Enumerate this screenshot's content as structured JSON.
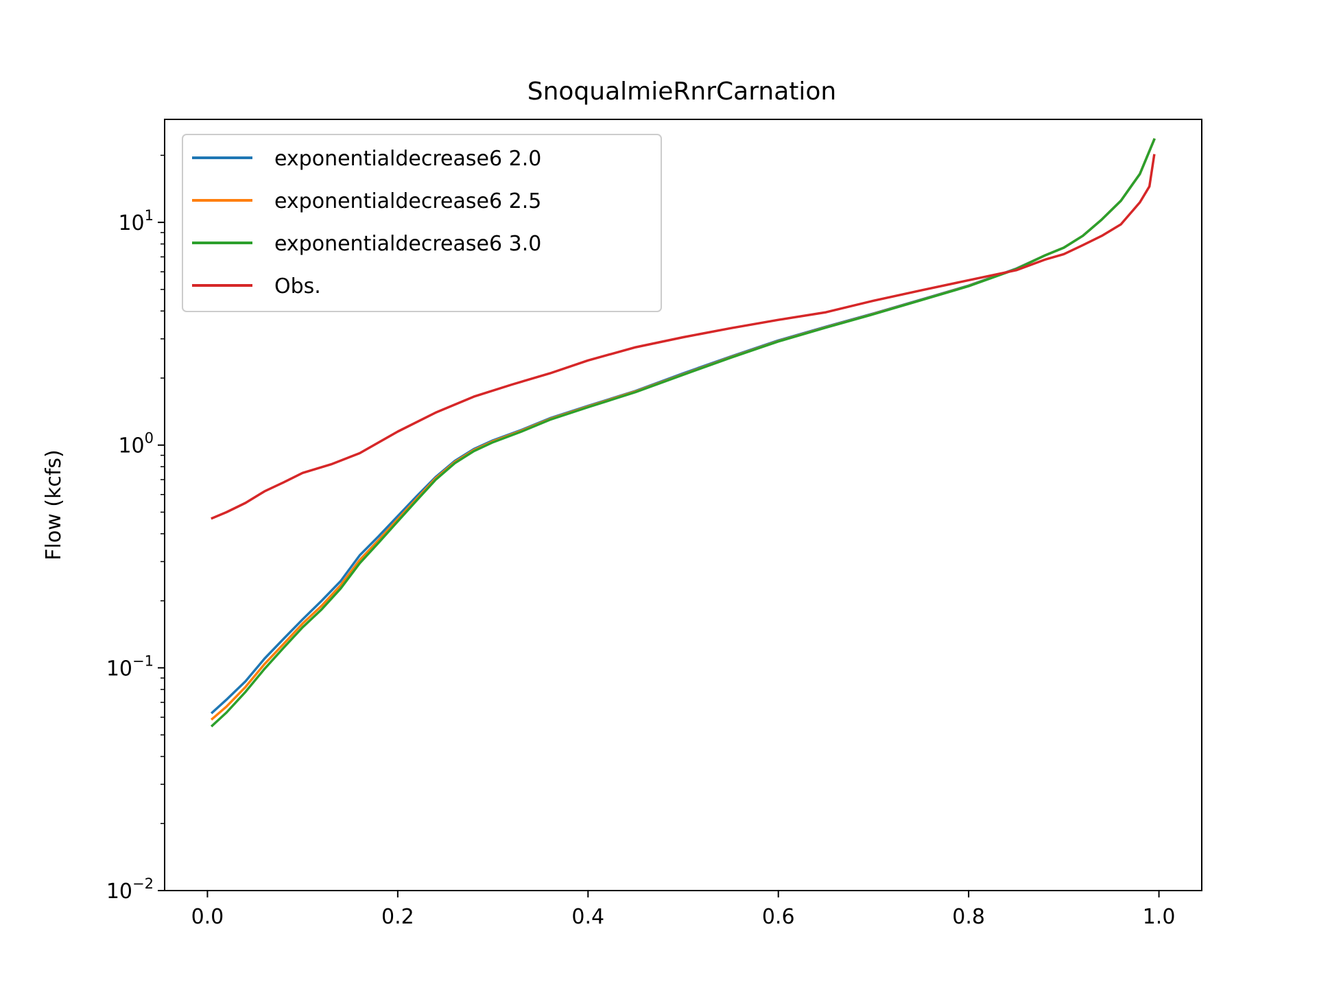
{
  "chart_data": {
    "type": "line",
    "title": "SnoqualmieRnrCarnation",
    "xlabel": "",
    "ylabel": "Flow (kcfs)",
    "xlim": [
      -0.045,
      1.045
    ],
    "ylim": [
      0.01,
      29
    ],
    "yscale": "log",
    "x_ticks": [
      {
        "value": 0.0,
        "label": "0.0"
      },
      {
        "value": 0.2,
        "label": "0.2"
      },
      {
        "value": 0.4,
        "label": "0.4"
      },
      {
        "value": 0.6,
        "label": "0.6"
      },
      {
        "value": 0.8,
        "label": "0.8"
      },
      {
        "value": 1.0,
        "label": "1.0"
      }
    ],
    "y_ticks": [
      {
        "value": 0.01,
        "base": "10",
        "exp": "−2"
      },
      {
        "value": 0.1,
        "base": "10",
        "exp": "−1"
      },
      {
        "value": 1,
        "base": "10",
        "exp": "0"
      },
      {
        "value": 10,
        "base": "10",
        "exp": "1"
      }
    ],
    "grid": false,
    "legend_position": "top-left",
    "series": [
      {
        "name": "exponentialdecrease6 2.0",
        "color": "#1f77b4",
        "x": [
          0.005,
          0.02,
          0.04,
          0.06,
          0.08,
          0.1,
          0.12,
          0.14,
          0.16,
          0.18,
          0.2,
          0.22,
          0.24,
          0.26,
          0.28,
          0.3,
          0.33,
          0.36,
          0.4,
          0.45,
          0.5,
          0.55,
          0.6,
          0.65,
          0.7,
          0.75,
          0.8,
          0.85,
          0.88,
          0.9,
          0.92,
          0.94,
          0.96,
          0.98,
          0.995
        ],
        "y": [
          0.063,
          0.072,
          0.087,
          0.11,
          0.135,
          0.165,
          0.2,
          0.245,
          0.32,
          0.39,
          0.48,
          0.59,
          0.72,
          0.85,
          0.96,
          1.05,
          1.17,
          1.32,
          1.5,
          1.75,
          2.1,
          2.5,
          2.95,
          3.4,
          3.9,
          4.5,
          5.2,
          6.2,
          7.1,
          7.7,
          8.7,
          10.3,
          12.5,
          16.5,
          23.5
        ]
      },
      {
        "name": "exponentialdecrease6 2.5",
        "color": "#ff7f0e",
        "x": [
          0.005,
          0.02,
          0.04,
          0.06,
          0.08,
          0.1,
          0.12,
          0.14,
          0.16,
          0.18,
          0.2,
          0.22,
          0.24,
          0.26,
          0.28,
          0.3,
          0.33,
          0.36,
          0.4,
          0.45,
          0.5,
          0.55,
          0.6,
          0.65,
          0.7,
          0.75,
          0.8,
          0.85,
          0.88,
          0.9,
          0.92,
          0.94,
          0.96,
          0.98,
          0.995
        ],
        "y": [
          0.059,
          0.067,
          0.082,
          0.104,
          0.128,
          0.158,
          0.19,
          0.235,
          0.305,
          0.375,
          0.465,
          0.575,
          0.71,
          0.84,
          0.95,
          1.04,
          1.16,
          1.31,
          1.49,
          1.74,
          2.08,
          2.48,
          2.93,
          3.38,
          3.88,
          4.48,
          5.18,
          6.18,
          7.1,
          7.7,
          8.7,
          10.3,
          12.5,
          16.5,
          23.5
        ]
      },
      {
        "name": "exponentialdecrease6 3.0",
        "color": "#2ca02c",
        "x": [
          0.005,
          0.02,
          0.04,
          0.06,
          0.08,
          0.1,
          0.12,
          0.14,
          0.16,
          0.18,
          0.2,
          0.22,
          0.24,
          0.26,
          0.28,
          0.3,
          0.33,
          0.36,
          0.4,
          0.45,
          0.5,
          0.55,
          0.6,
          0.65,
          0.7,
          0.75,
          0.8,
          0.85,
          0.88,
          0.9,
          0.92,
          0.94,
          0.96,
          0.98,
          0.995
        ],
        "y": [
          0.055,
          0.063,
          0.078,
          0.099,
          0.123,
          0.152,
          0.183,
          0.227,
          0.295,
          0.365,
          0.455,
          0.565,
          0.7,
          0.83,
          0.94,
          1.03,
          1.15,
          1.3,
          1.48,
          1.73,
          2.07,
          2.47,
          2.92,
          3.37,
          3.87,
          4.47,
          5.17,
          6.17,
          7.1,
          7.7,
          8.7,
          10.3,
          12.5,
          16.5,
          23.5
        ]
      },
      {
        "name": "Obs.",
        "color": "#d62728",
        "x": [
          0.005,
          0.02,
          0.04,
          0.06,
          0.08,
          0.1,
          0.13,
          0.16,
          0.2,
          0.24,
          0.28,
          0.32,
          0.36,
          0.4,
          0.45,
          0.5,
          0.55,
          0.6,
          0.65,
          0.7,
          0.75,
          0.8,
          0.85,
          0.88,
          0.9,
          0.92,
          0.94,
          0.96,
          0.98,
          0.99,
          0.995
        ],
        "y": [
          0.47,
          0.5,
          0.55,
          0.62,
          0.68,
          0.75,
          0.82,
          0.92,
          1.15,
          1.4,
          1.65,
          1.87,
          2.1,
          2.4,
          2.75,
          3.05,
          3.35,
          3.65,
          3.95,
          4.45,
          4.95,
          5.5,
          6.1,
          6.8,
          7.2,
          7.9,
          8.7,
          9.8,
          12.3,
          14.5,
          20
        ]
      }
    ]
  }
}
